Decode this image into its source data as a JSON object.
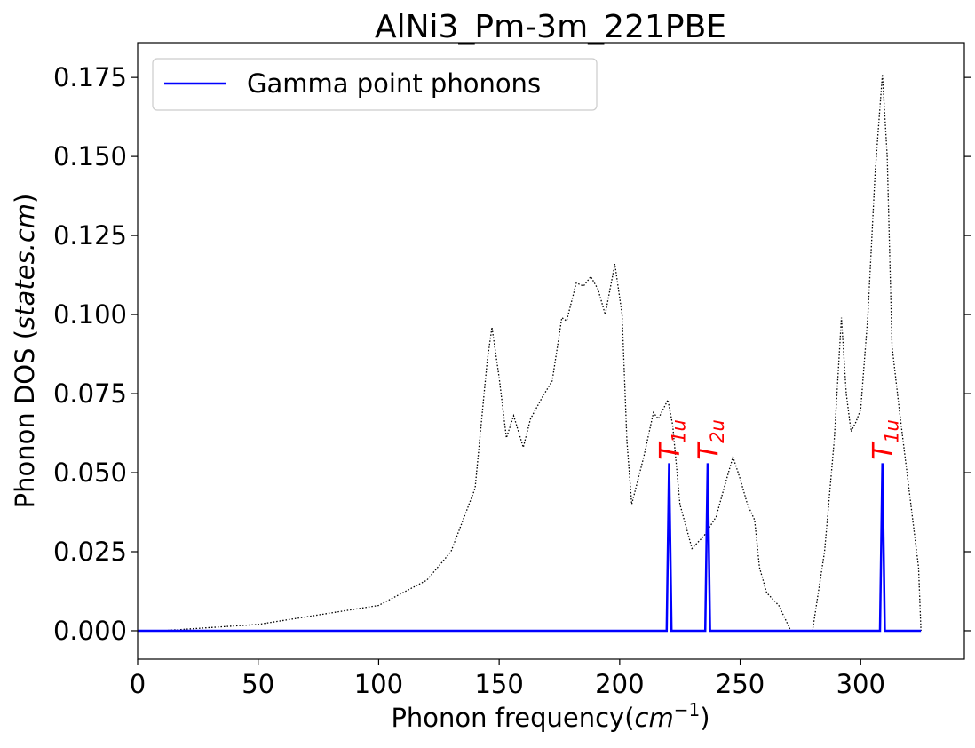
{
  "chart_data": {
    "type": "line",
    "title": "AlNi3_Pm-3m_221PBE",
    "xlabel": {
      "text": "Phonon frequency(",
      "math": "cm",
      "sup": "−1",
      "end": ")"
    },
    "ylabel": {
      "text": "Phonon DOS (",
      "math": "states.cm",
      "end": ")"
    },
    "xlim": [
      0,
      343
    ],
    "ylim": [
      -0.009,
      0.186
    ],
    "xticks": [
      0,
      50,
      100,
      150,
      200,
      250,
      300
    ],
    "yticks": [
      {
        "value": 0,
        "label": "0.000"
      },
      {
        "value": 0.025,
        "label": "0.025"
      },
      {
        "value": 0.05,
        "label": "0.050"
      },
      {
        "value": 0.075,
        "label": "0.075"
      },
      {
        "value": 0.1,
        "label": "0.100"
      },
      {
        "value": 0.125,
        "label": "0.125"
      },
      {
        "value": 0.15,
        "label": "0.150"
      },
      {
        "value": 0.175,
        "label": "0.175"
      }
    ],
    "legend": "upper left",
    "series": [
      {
        "color": "#000000",
        "style": "dotted",
        "x": [
          10,
          50,
          100,
          120,
          130,
          140,
          145,
          147,
          150,
          153,
          156,
          160,
          163,
          168,
          172,
          176,
          178,
          182,
          185,
          188,
          191,
          194,
          198,
          201,
          203,
          205,
          210,
          214,
          216,
          218,
          220,
          222,
          225,
          230,
          235,
          240,
          244,
          247,
          250,
          253,
          256,
          258,
          261,
          266,
          271,
          280,
          285,
          289,
          292,
          294,
          296,
          298,
          300,
          303,
          306,
          309,
          311,
          313,
          316,
          320,
          324,
          325
        ],
        "values": [
          0,
          0.002,
          0.008,
          0.016,
          0.025,
          0.045,
          0.085,
          0.096,
          0.08,
          0.061,
          0.068,
          0.058,
          0.067,
          0.074,
          0.079,
          0.099,
          0.098,
          0.11,
          0.109,
          0.112,
          0.108,
          0.1,
          0.116,
          0.1,
          0.06,
          0.04,
          0.055,
          0.069,
          0.067,
          0.07,
          0.073,
          0.065,
          0.04,
          0.026,
          0.03,
          0.036,
          0.047,
          0.055,
          0.048,
          0.04,
          0.035,
          0.02,
          0.012,
          0.008,
          0,
          0,
          0.025,
          0.06,
          0.099,
          0.075,
          0.063,
          0.066,
          0.07,
          0.1,
          0.145,
          0.176,
          0.15,
          0.09,
          0.07,
          0.045,
          0.02,
          0
        ]
      },
      {
        "name": "Gamma point phonons",
        "color": "#0000ff",
        "style": "solid",
        "x": [
          0,
          219.5,
          220.5,
          221.5,
          235.5,
          236.5,
          237.5,
          308,
          309,
          310,
          325
        ],
        "values": [
          0,
          0,
          0.053,
          0,
          0,
          0.053,
          0,
          0,
          0.053,
          0,
          0
        ]
      }
    ],
    "annotations": [
      {
        "symbol": "T",
        "subscript": "1u",
        "x": 220.5,
        "y": 0.054,
        "color": "#ff0000"
      },
      {
        "symbol": "T",
        "subscript": "2u",
        "x": 236.5,
        "y": 0.054,
        "color": "#ff0000"
      },
      {
        "symbol": "T",
        "subscript": "1u",
        "x": 309,
        "y": 0.054,
        "color": "#ff0000"
      }
    ]
  }
}
